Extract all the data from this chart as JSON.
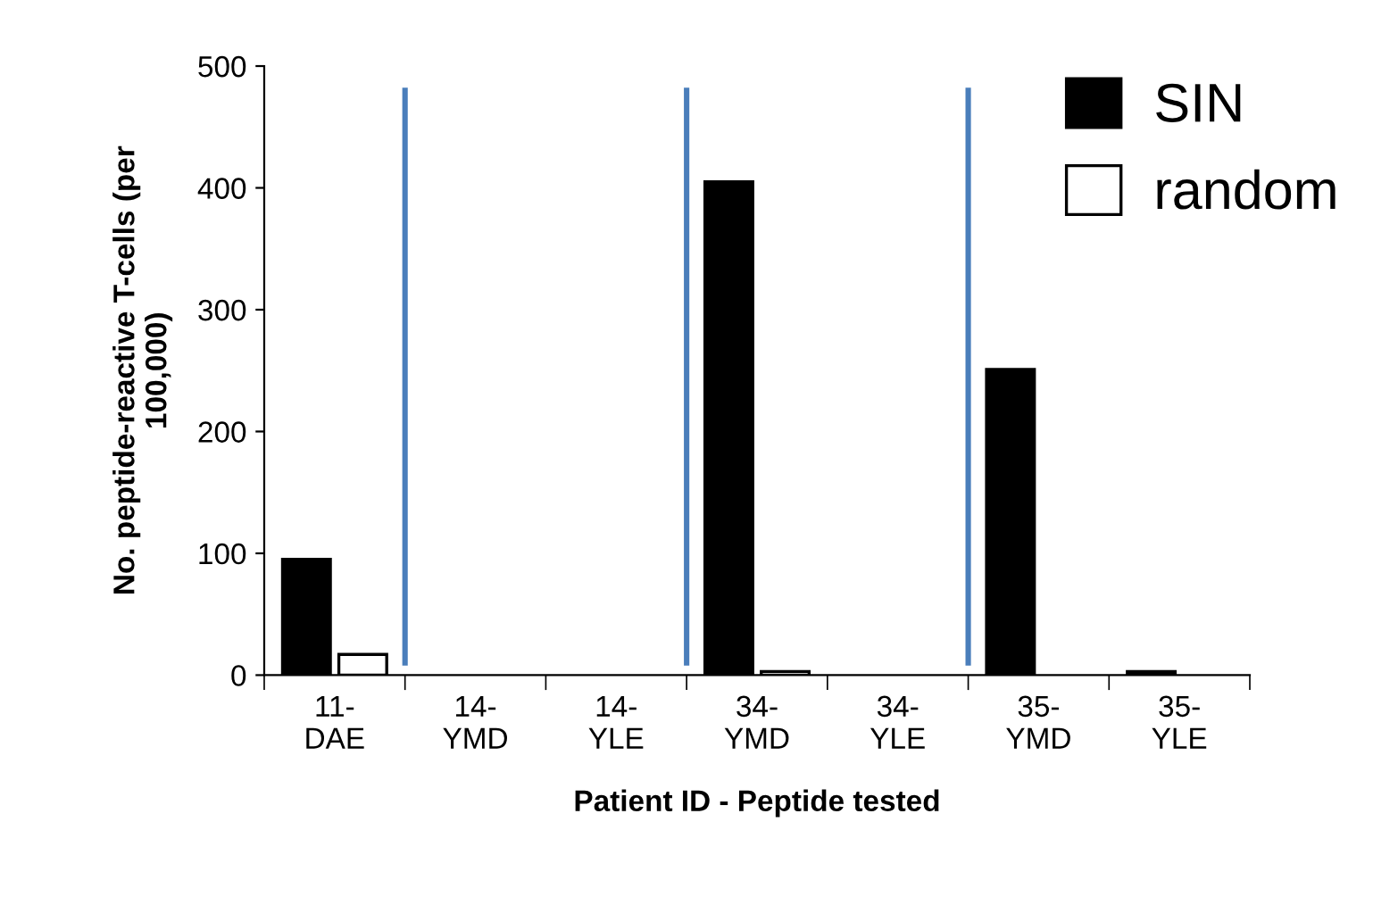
{
  "chart_data": {
    "type": "bar",
    "xlabel": "Patient ID - Peptide tested",
    "ylabel": "No. peptide-reactive T-cells (per\n100,000)",
    "categories": [
      "11-\nDAE",
      "14-\nYMD",
      "14-\nYLE",
      "34-\nYMD",
      "34-\nYLE",
      "35-\nYMD",
      "35-\nYLE"
    ],
    "series": [
      {
        "name": "SIN",
        "color": "#000000",
        "values": [
          95,
          0,
          0,
          405,
          0,
          251,
          3
        ]
      },
      {
        "name": "random",
        "color": "#ffffff",
        "values": [
          17,
          0,
          0,
          3,
          0,
          0,
          0
        ]
      }
    ],
    "ylim": [
      0,
      500
    ],
    "yticks": [
      0,
      100,
      200,
      300,
      400,
      500
    ],
    "grid": false,
    "legend": "top right"
  }
}
